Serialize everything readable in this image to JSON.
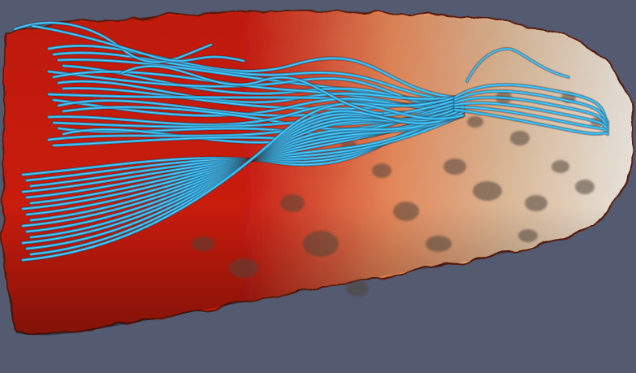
{
  "scene": {
    "kind": "3d-volume-render-with-streamlines",
    "colors": {
      "background": "#545a70",
      "volume_hot": "#c81a10",
      "volume_mid": "#e3885a",
      "volume_warm": "#d9b796",
      "volume_cool": "#e7e3dc",
      "volume_shadow": "#5a1a10",
      "cavity_dark": "#4e463c",
      "streamline": "#18a4de",
      "streamline_highlight": "#6fd6ff"
    }
  }
}
